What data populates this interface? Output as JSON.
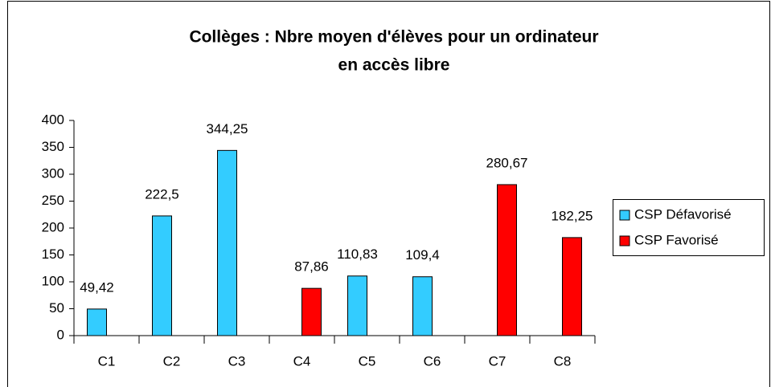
{
  "chart_data": {
    "type": "bar",
    "title": [
      "Collèges : Nbre moyen d'élèves pour un ordinateur",
      "en accès libre"
    ],
    "categories": [
      "C1",
      "C2",
      "C3",
      "C4",
      "C5",
      "C6",
      "C7",
      "C8"
    ],
    "series": [
      {
        "name": "CSP Défavorisé",
        "color": "#33ccff",
        "values": [
          49.42,
          222.5,
          344.25,
          null,
          110.83,
          109.4,
          null,
          null
        ],
        "value_labels": [
          "49,42",
          "222,5",
          "344,25",
          null,
          "110,83",
          "109,4",
          null,
          null
        ]
      },
      {
        "name": "CSP Favorisé",
        "color": "#ff0000",
        "values": [
          null,
          null,
          null,
          87.86,
          null,
          null,
          280.67,
          182.25
        ],
        "value_labels": [
          null,
          null,
          null,
          "87,86",
          null,
          null,
          "280,67",
          "182,25"
        ]
      }
    ],
    "ylim": [
      0,
      400
    ],
    "yticks": [
      0,
      50,
      100,
      150,
      200,
      250,
      300,
      350,
      400
    ],
    "legend": "right"
  }
}
